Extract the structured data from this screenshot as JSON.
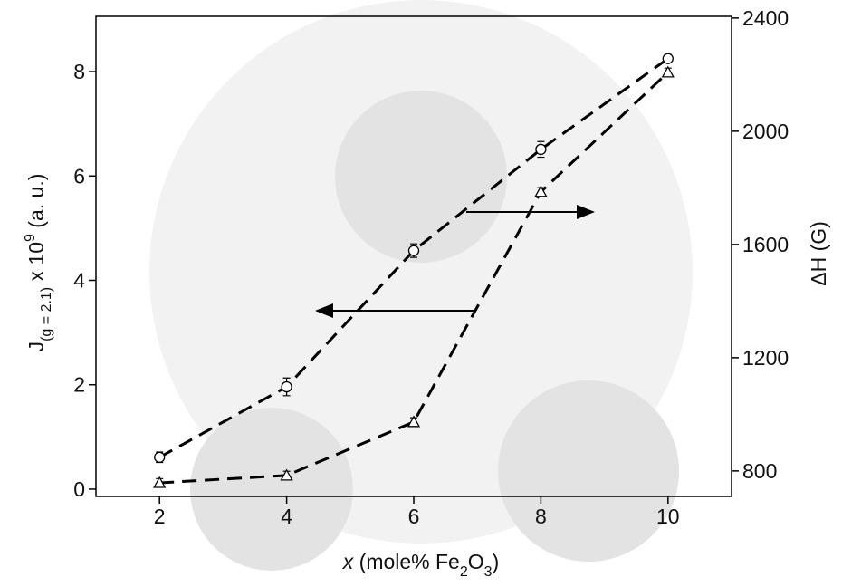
{
  "chart_data": {
    "type": "line",
    "x": [
      2,
      4,
      6,
      8,
      10
    ],
    "xlim": [
      1,
      11
    ],
    "xticks": [
      2,
      4,
      6,
      8,
      10
    ],
    "ylim": [
      -0.14,
      9.06
    ],
    "yticks": [
      0,
      2,
      4,
      6,
      8
    ],
    "y2lim": [
      710,
      2406
    ],
    "y2ticks": [
      800,
      1200,
      1600,
      2000,
      2400
    ],
    "xlabel": {
      "italic": "x",
      "text": " (mole% Fe",
      "sub1": "2",
      "mid": "O",
      "sub2": "3",
      "end": ")"
    },
    "ylabel": {
      "main": "J",
      "sub": "(g = 2.1)",
      "mid": " x 10",
      "sup": "9",
      "unit": " (a. u.)"
    },
    "y2label": "ΔH (G)",
    "series": [
      {
        "marker": "circle",
        "color": "#000000",
        "values": [
          0.61,
          1.96,
          4.57,
          6.51,
          8.25
        ],
        "errors": [
          0.1,
          0.17,
          0.13,
          0.15,
          0.08
        ]
      },
      {
        "marker": "triangle",
        "color": "#000000",
        "axis": "y2",
        "values": [
          758,
          784,
          973,
          1786,
          2208
        ],
        "errors": [
          15,
          15,
          15,
          15,
          15
        ]
      }
    ]
  }
}
